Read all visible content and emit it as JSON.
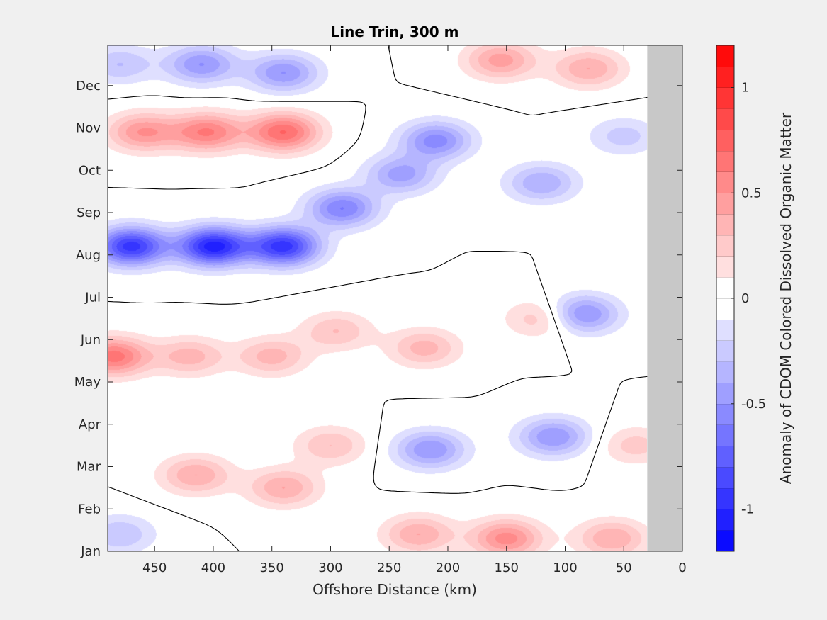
{
  "chart_data": {
    "type": "heatmap",
    "subtype": "filled-contour",
    "title": "Line Trin, 300 m",
    "xlabel": "Offshore Distance (km)",
    "ylabel": "",
    "xlim": [
      490,
      0
    ],
    "x_reversed": true,
    "x_ticks": [
      450,
      400,
      350,
      300,
      250,
      200,
      150,
      100,
      50,
      0
    ],
    "ylim": [
      0,
      11.95
    ],
    "y_ticks": [
      0,
      1,
      2,
      3,
      4,
      5,
      6,
      7,
      8,
      9,
      10,
      11
    ],
    "y_tick_labels": [
      "Jan",
      "Feb",
      "Mar",
      "Apr",
      "May",
      "Jun",
      "Jul",
      "Aug",
      "Sep",
      "Oct",
      "Nov",
      "Dec"
    ],
    "no_data_x_range": [
      30,
      0
    ],
    "no_data_color": "#c8c8c8",
    "zero_contour_color": "#000000",
    "colorbar": {
      "label": "Anomaly of CDOM Colored Dissolved Organic Matter",
      "clim": [
        -1.2,
        1.2
      ],
      "ticks": [
        -1,
        -0.5,
        0,
        0.5,
        1
      ],
      "tick_labels": [
        "-1",
        "-0.5",
        "0",
        "0.5",
        "1"
      ],
      "levels": 24,
      "colormap": "blue-white-red",
      "low_color": "#0000ff",
      "mid_color": "#ffffff",
      "high_color": "#ff0000",
      "white_band": [
        -0.1,
        0.1
      ]
    },
    "features": [
      {
        "x": 400,
        "y": 7.2,
        "value": -1.05
      },
      {
        "x": 470,
        "y": 7.2,
        "value": -0.95
      },
      {
        "x": 340,
        "y": 7.2,
        "value": -0.95
      },
      {
        "x": 405,
        "y": 9.9,
        "value": 0.6
      },
      {
        "x": 340,
        "y": 9.9,
        "value": 0.7
      },
      {
        "x": 460,
        "y": 9.9,
        "value": 0.5
      },
      {
        "x": 485,
        "y": 4.6,
        "value": 0.65
      },
      {
        "x": 420,
        "y": 4.6,
        "value": 0.35
      },
      {
        "x": 350,
        "y": 4.6,
        "value": 0.35
      },
      {
        "x": 290,
        "y": 8.1,
        "value": -0.6
      },
      {
        "x": 240,
        "y": 8.9,
        "value": -0.45
      },
      {
        "x": 210,
        "y": 9.7,
        "value": -0.55
      },
      {
        "x": 120,
        "y": 8.7,
        "value": -0.4
      },
      {
        "x": 85,
        "y": 5.6,
        "value": -0.55
      },
      {
        "x": 215,
        "y": 2.4,
        "value": -0.5
      },
      {
        "x": 110,
        "y": 2.7,
        "value": -0.5
      },
      {
        "x": 410,
        "y": 11.5,
        "value": -0.5
      },
      {
        "x": 340,
        "y": 11.3,
        "value": -0.5
      },
      {
        "x": 480,
        "y": 11.5,
        "value": -0.3
      },
      {
        "x": 155,
        "y": 11.6,
        "value": 0.45
      },
      {
        "x": 80,
        "y": 11.4,
        "value": 0.4
      },
      {
        "x": 150,
        "y": 0.3,
        "value": 0.55
      },
      {
        "x": 60,
        "y": 0.3,
        "value": 0.4
      },
      {
        "x": 225,
        "y": 0.4,
        "value": 0.4
      },
      {
        "x": 340,
        "y": 1.5,
        "value": 0.4
      },
      {
        "x": 415,
        "y": 1.8,
        "value": 0.4
      },
      {
        "x": 295,
        "y": 5.2,
        "value": 0.3
      },
      {
        "x": 220,
        "y": 4.8,
        "value": 0.35
      },
      {
        "x": 120,
        "y": 5.5,
        "value": 0.3
      },
      {
        "x": 300,
        "y": 2.5,
        "value": 0.3
      },
      {
        "x": 480,
        "y": 0.4,
        "value": -0.3
      },
      {
        "x": 50,
        "y": 9.8,
        "value": -0.25
      },
      {
        "x": 40,
        "y": 2.5,
        "value": 0.25
      }
    ]
  }
}
